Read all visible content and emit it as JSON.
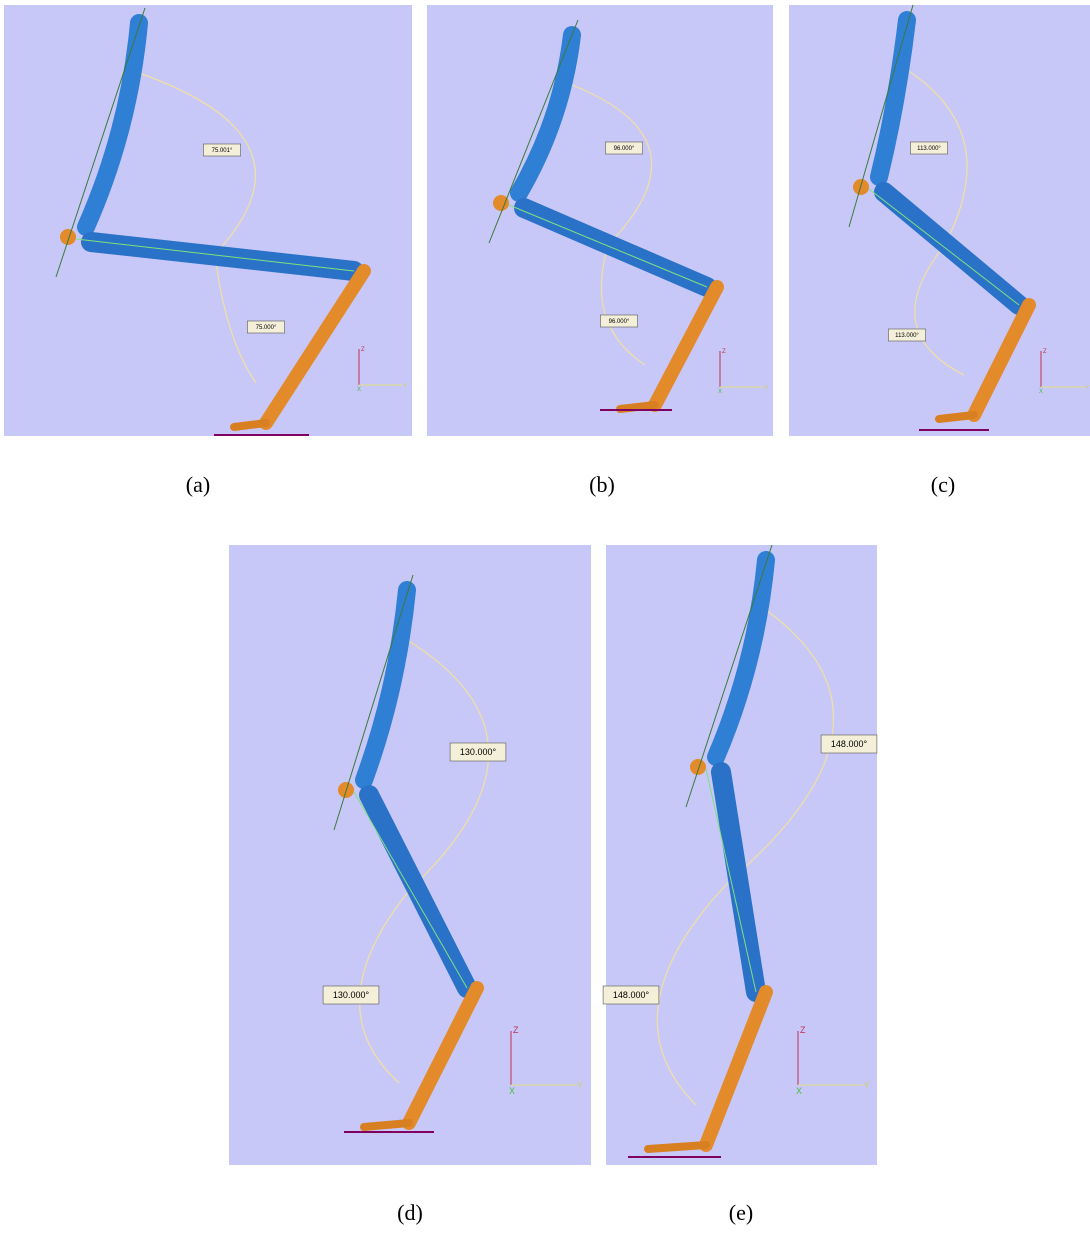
{
  "panels": [
    {
      "caption": "(a)",
      "angle_labels": [
        "75.001°",
        "75.000°"
      ],
      "axis_labels": [
        "Z",
        "X",
        "Y"
      ]
    },
    {
      "caption": "(b)",
      "angle_labels": [
        "96.000°",
        "96.000°"
      ],
      "axis_labels": [
        "Z",
        "X",
        "Y"
      ]
    },
    {
      "caption": "(c)",
      "angle_labels": [
        "113.000°",
        "113.000°"
      ],
      "axis_labels": [
        "Z",
        "X",
        "Y"
      ]
    },
    {
      "caption": "(d)",
      "angle_labels": [
        "130.000°",
        "130.000°"
      ],
      "axis_labels": [
        "Z",
        "X",
        "Y"
      ]
    },
    {
      "caption": "(e)",
      "angle_labels": [
        "148.000°",
        "148.000°"
      ],
      "axis_labels": [
        "Z",
        "X",
        "Y"
      ]
    }
  ]
}
